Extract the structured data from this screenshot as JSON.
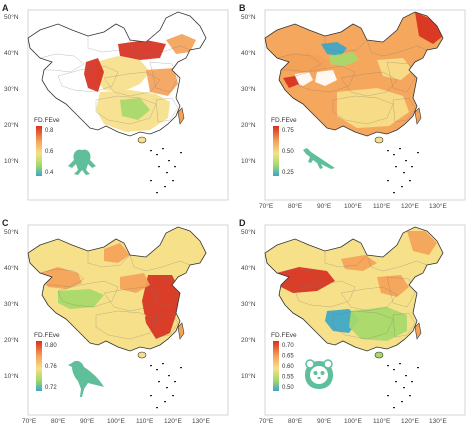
{
  "panels": [
    {
      "label": "A",
      "legend_title": "FD.FEve",
      "legend_ticks": [
        "0.8",
        "0.6",
        "0.4"
      ],
      "lat_ticks": [
        "50°N",
        "40°N",
        "30°N",
        "20°N",
        "10°N"
      ],
      "lon_ticks": [],
      "icon": "frog-icon",
      "color": "#5fbf9a"
    },
    {
      "label": "B",
      "legend_title": "FD.FEve",
      "legend_ticks": [
        "0.75",
        "0.50",
        "0.25"
      ],
      "lat_ticks": [
        "50°N",
        "40°N",
        "30°N",
        "20°N",
        "10°N"
      ],
      "lon_ticks": [
        "70°E",
        "80°E",
        "90°E",
        "100°E",
        "110°E",
        "120°E",
        "130°E"
      ],
      "icon": "lizard-icon",
      "color": "#5fbf9a"
    },
    {
      "label": "C",
      "legend_title": "FD.FEve",
      "legend_ticks": [
        "0.80",
        "0.76",
        "0.72"
      ],
      "lat_ticks": [
        "50°N",
        "40°N",
        "30°N",
        "20°N",
        "10°N"
      ],
      "lon_ticks": [
        "70°E",
        "80°E",
        "90°E",
        "100°E",
        "110°E",
        "120°E",
        "130°E"
      ],
      "icon": "bird-icon",
      "color": "#5fbf9a"
    },
    {
      "label": "D",
      "legend_title": "FD.FEve",
      "legend_ticks": [
        "0.70",
        "0.65",
        "0.60",
        "0.55",
        "0.50"
      ],
      "lat_ticks": [
        "50°N",
        "40°N",
        "30°N",
        "20°N",
        "10°N"
      ],
      "lon_ticks": [
        "70°E",
        "80°E",
        "90°E",
        "100°E",
        "110°E",
        "120°E",
        "130°E"
      ],
      "icon": "panda-icon",
      "color": "#5fbf9a"
    }
  ],
  "colors": {
    "high": "#d7301f",
    "mid_high": "#f4a259",
    "mid": "#f6e08a",
    "mid_low": "#a6d96a",
    "low": "#3aa7c9"
  }
}
